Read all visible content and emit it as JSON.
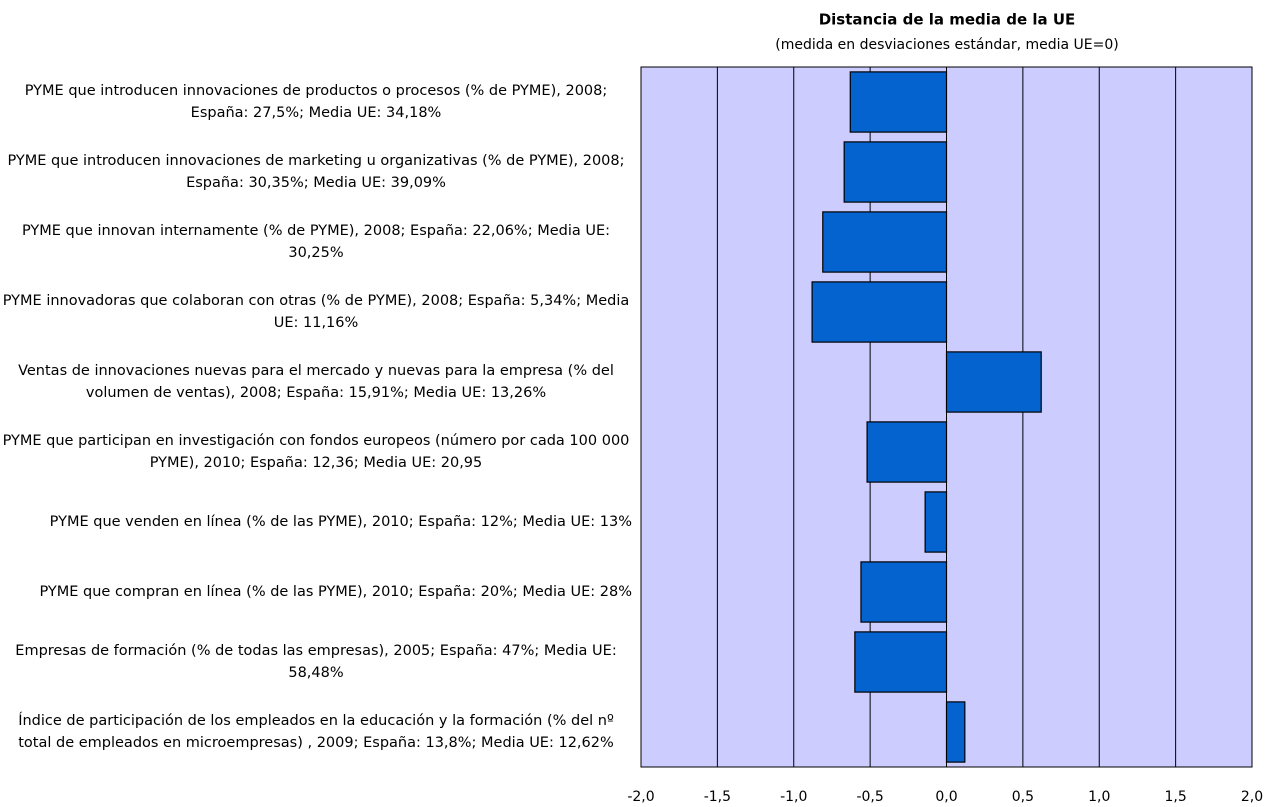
{
  "chart_data": {
    "type": "barh",
    "title": "Distancia de la media de la UE",
    "subtitle": "(medida en desviaciones estándar, media UE=0)",
    "categories": [
      "PYME que introducen innovaciones de productos o procesos (% de PYME), 2008; España: 27,5%; Media UE: 34,18%",
      "PYME que introducen innovaciones de marketing u organizativas (% de PYME), 2008; España: 30,35%; Media UE: 39,09%",
      "PYME que innovan internamente (% de PYME), 2008; España: 22,06%; Media UE: 30,25%",
      "PYME innovadoras que colaboran con otras (% de PYME), 2008; España: 5,34%; Media UE: 11,16%",
      "Ventas de innovaciones nuevas para el mercado y nuevas para la empresa (% del volumen de ventas), 2008; España: 15,91%; Media UE: 13,26%",
      "PYME que participan en investigación con fondos europeos (número por cada 100 000 PYME), 2010; España: 12,36; Media UE: 20,95",
      "PYME que venden en línea (% de las PYME), 2010; España: 12%; Media UE: 13%",
      "PYME que compran en línea (% de las PYME), 2010; España: 20%; Media UE: 28%",
      "Empresas de formación (% de todas las empresas), 2005; España: 47%; Media UE: 58,48%",
      "Índice de participación de los empleados en la educación y la formación (% del nº total de empleados en microempresas) , 2009; España: 13,8%; Media UE: 12,62%"
    ],
    "values": [
      -0.63,
      -0.67,
      -0.81,
      -0.88,
      0.62,
      -0.52,
      -0.14,
      -0.56,
      -0.6,
      0.12
    ],
    "color": "#0563d0",
    "plot_background": "#ccccff",
    "xlim": [
      -2,
      2
    ],
    "xticks": [
      {
        "value": -2,
        "label": "-2,0"
      },
      {
        "value": -1.5,
        "label": "-1,5"
      },
      {
        "value": -1,
        "label": "-1,0"
      },
      {
        "value": -0.5,
        "label": "-0,5"
      },
      {
        "value": 0,
        "label": "0,0"
      },
      {
        "value": 0.5,
        "label": "0,5"
      },
      {
        "value": 1,
        "label": "1,0"
      },
      {
        "value": 1.5,
        "label": "1,5"
      },
      {
        "value": 2,
        "label": "2,0"
      }
    ],
    "grid": true
  }
}
